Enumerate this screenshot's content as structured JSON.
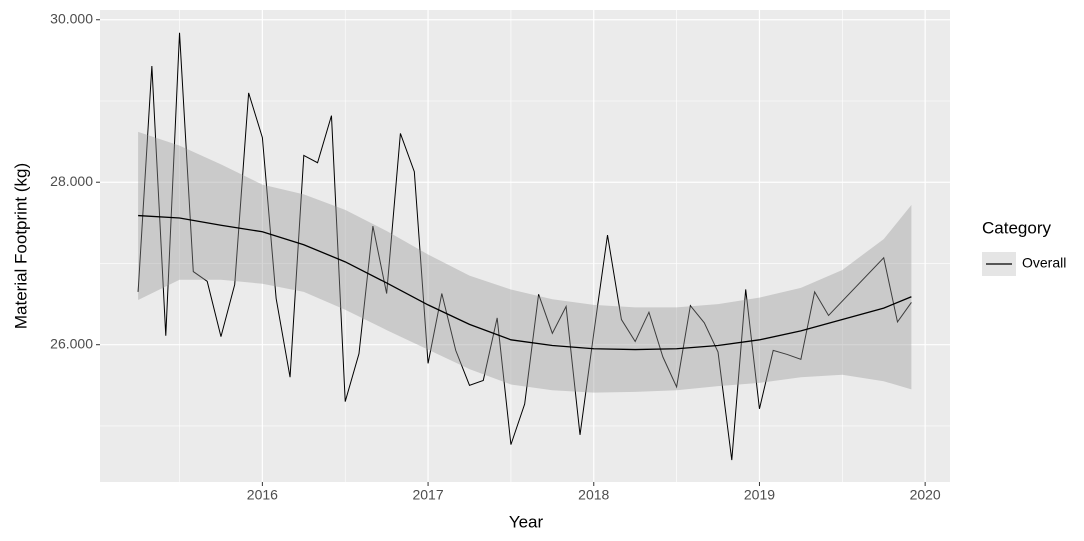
{
  "chart_data": {
    "type": "line",
    "x_label": "Year",
    "y_label": "Material Footprint (kg)",
    "legend_title": "Category",
    "legend_position": "right",
    "xlim": [
      2015.02,
      2020.15
    ],
    "xticks": [
      2016,
      2017,
      2018,
      2019,
      2020
    ],
    "ylim": [
      24.31,
      30.12
    ],
    "yticks": [
      {
        "value": 26,
        "label": "26.000"
      },
      {
        "value": 28,
        "label": "28.000"
      },
      {
        "value": 30,
        "label": "30.000"
      }
    ],
    "grid": true,
    "series": [
      {
        "name": "Overall",
        "color": "#000000",
        "x": [
          2015.25,
          2015.333,
          2015.417,
          2015.5,
          2015.583,
          2015.667,
          2015.75,
          2015.833,
          2015.917,
          2016,
          2016.083,
          2016.167,
          2016.25,
          2016.333,
          2016.417,
          2016.5,
          2016.583,
          2016.667,
          2016.75,
          2016.833,
          2016.917,
          2017,
          2017.083,
          2017.167,
          2017.25,
          2017.333,
          2017.417,
          2017.5,
          2017.583,
          2017.667,
          2017.75,
          2017.833,
          2017.917,
          2018,
          2018.083,
          2018.167,
          2018.25,
          2018.333,
          2018.417,
          2018.5,
          2018.583,
          2018.667,
          2018.75,
          2018.833,
          2018.917,
          2019,
          2019.083,
          2019.167,
          2019.25,
          2019.333,
          2019.417,
          2019.75,
          2019.833,
          2019.917
        ],
        "values": [
          26.65,
          29.43,
          26.11,
          29.84,
          26.9,
          26.78,
          26.1,
          26.74,
          29.1,
          28.55,
          26.57,
          25.6,
          28.33,
          28.24,
          28.82,
          25.3,
          25.89,
          27.46,
          26.63,
          28.6,
          28.13,
          25.77,
          26.63,
          25.93,
          25.5,
          25.56,
          26.33,
          24.77,
          25.27,
          26.62,
          26.14,
          26.47,
          24.89,
          26.14,
          27.35,
          26.31,
          26.04,
          26.4,
          25.85,
          25.48,
          26.48,
          26.27,
          25.91,
          24.58,
          26.68,
          25.21,
          25.93,
          25.88,
          25.82,
          26.65,
          26.36,
          27.07,
          26.28,
          26.52
        ]
      }
    ],
    "smooth": {
      "color": "#000000",
      "band_color": "#999999",
      "x": [
        2015.25,
        2015.5,
        2015.75,
        2016,
        2016.25,
        2016.5,
        2016.75,
        2017,
        2017.25,
        2017.5,
        2017.75,
        2018,
        2018.25,
        2018.5,
        2018.75,
        2019,
        2019.25,
        2019.5,
        2019.75,
        2019.917
      ],
      "values": [
        27.59,
        27.56,
        27.47,
        27.39,
        27.23,
        27.02,
        26.76,
        26.49,
        26.25,
        26.06,
        25.99,
        25.95,
        25.94,
        25.95,
        25.99,
        26.06,
        26.17,
        26.31,
        26.45,
        26.59
      ],
      "upper": [
        28.62,
        28.45,
        28.22,
        27.97,
        27.85,
        27.66,
        27.4,
        27.11,
        26.85,
        26.68,
        26.56,
        26.49,
        26.46,
        26.46,
        26.5,
        26.58,
        26.7,
        26.92,
        27.3,
        27.72
      ],
      "lower": [
        26.55,
        26.8,
        26.8,
        26.75,
        26.65,
        26.43,
        26.18,
        25.94,
        25.7,
        25.51,
        25.44,
        25.41,
        25.42,
        25.44,
        25.49,
        25.53,
        25.6,
        25.63,
        25.55,
        25.45
      ]
    }
  }
}
